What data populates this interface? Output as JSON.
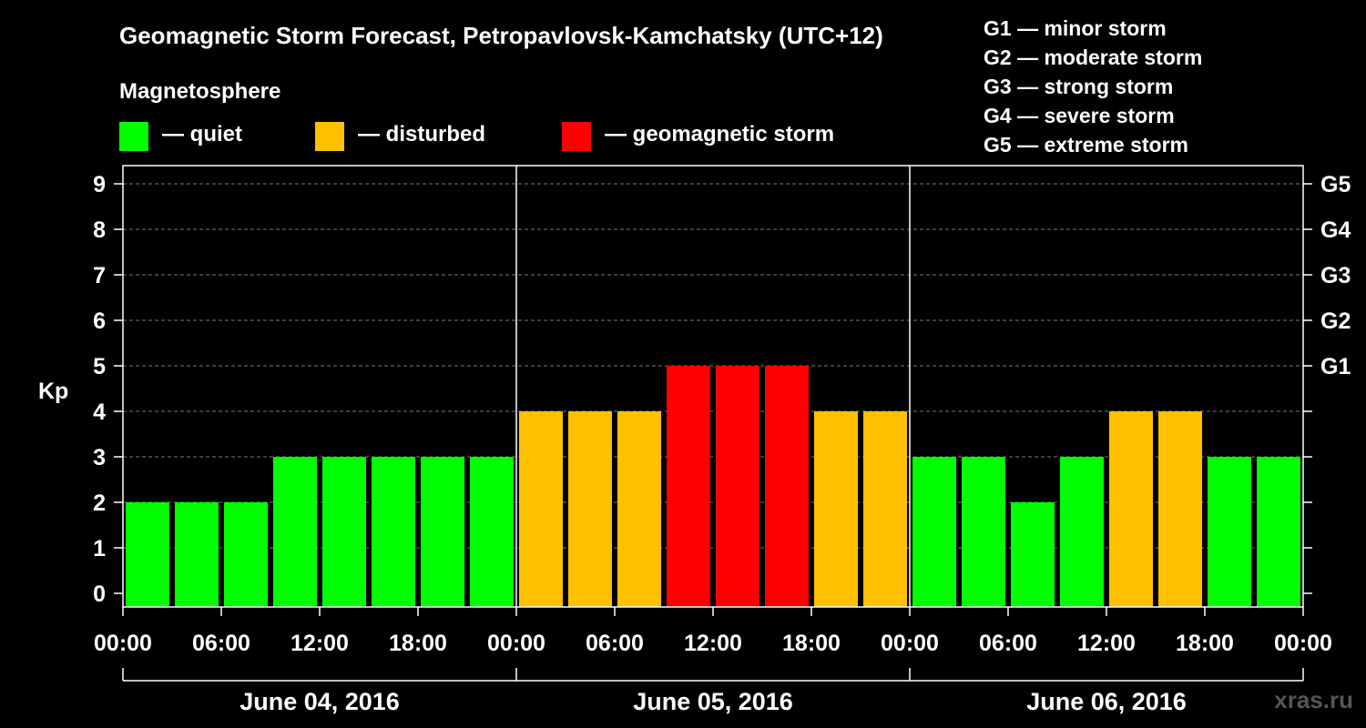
{
  "title": "Geomagnetic Storm Forecast, Petropavlovsk-Kamchatsky (UTC+12)",
  "legend": {
    "title": "Magnetosphere",
    "items": [
      {
        "label": "— quiet",
        "color": "#00ff00"
      },
      {
        "label": "— disturbed",
        "color": "#ffc000"
      },
      {
        "label": "— geomagnetic storm",
        "color": "#ff0000"
      }
    ]
  },
  "storm_scale": [
    "G1 — minor storm",
    "G2 — moderate storm",
    "G3 — strong storm",
    "G4 — severe storm",
    "G5 — extreme storm"
  ],
  "watermark": "xras.ru",
  "chart_data": {
    "type": "bar",
    "ylabel": "Kp",
    "ylim": [
      0,
      9
    ],
    "yticks": [
      "0",
      "1",
      "2",
      "3",
      "4",
      "5",
      "6",
      "7",
      "8",
      "9"
    ],
    "right_axis_labels": [
      {
        "kp": 5,
        "label": "G1"
      },
      {
        "kp": 6,
        "label": "G2"
      },
      {
        "kp": 7,
        "label": "G3"
      },
      {
        "kp": 8,
        "label": "G4"
      },
      {
        "kp": 9,
        "label": "G5"
      }
    ],
    "xtick_labels": [
      "00:00",
      "06:00",
      "12:00",
      "18:00",
      "00:00",
      "06:00",
      "12:00",
      "18:00",
      "00:00",
      "06:00",
      "12:00",
      "18:00",
      "00:00"
    ],
    "days": [
      "June 04, 2016",
      "June 05, 2016",
      "June 06, 2016"
    ],
    "interval_hours": 3,
    "values": [
      2,
      2,
      2,
      3,
      3,
      3,
      3,
      3,
      4,
      4,
      4,
      5,
      5,
      5,
      4,
      4,
      3,
      3,
      2,
      3,
      4,
      4,
      3,
      3
    ],
    "colors": {
      "quiet": "#00ff00",
      "disturbed": "#ffc000",
      "storm": "#ff0000"
    },
    "grid": "dashed horizontal"
  }
}
